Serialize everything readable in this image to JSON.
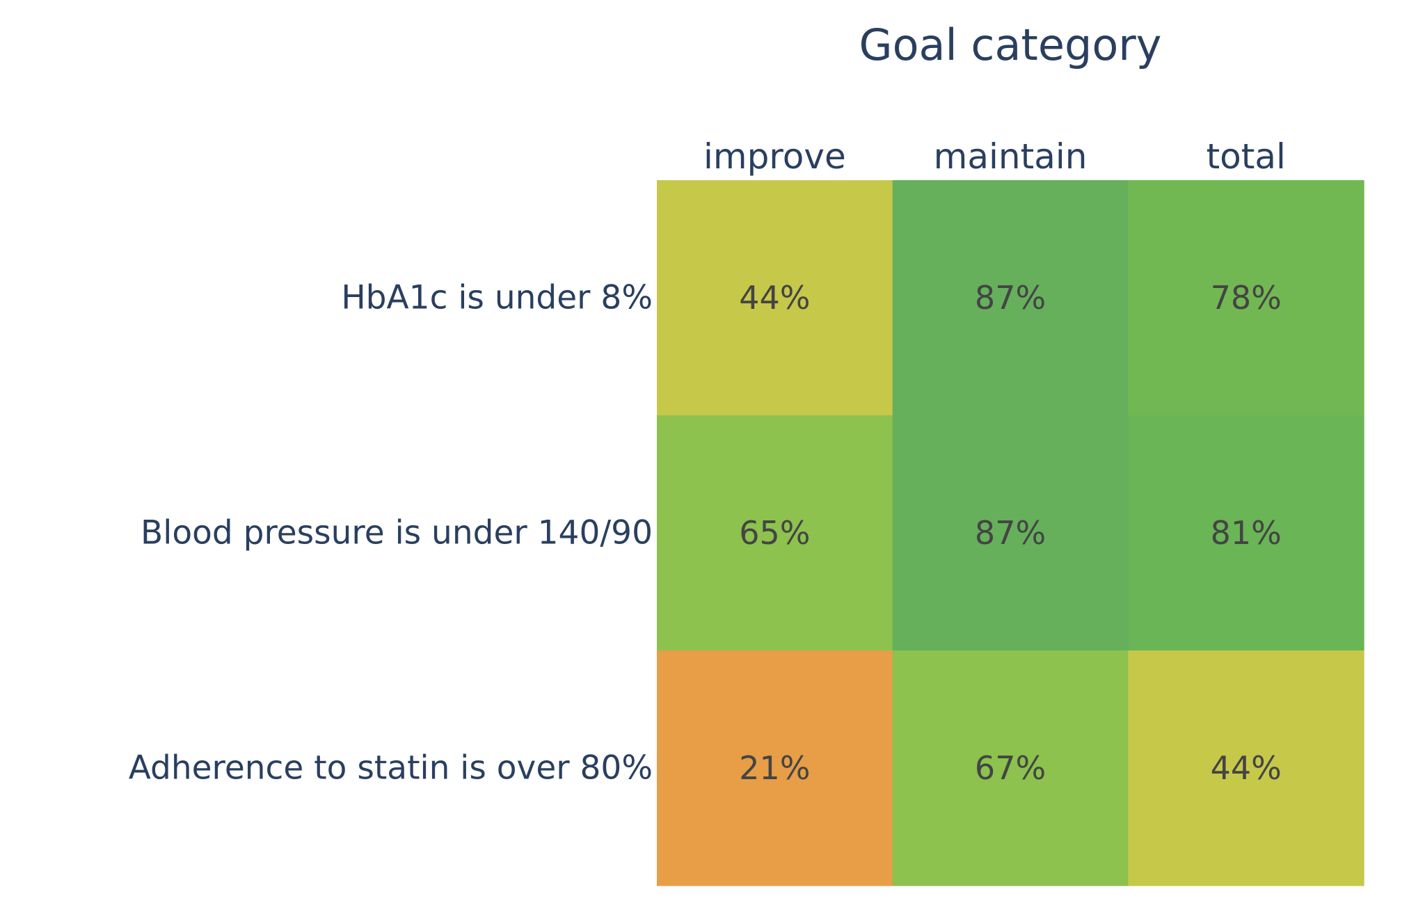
{
  "chart_data": {
    "type": "heatmap",
    "title": "Goal category",
    "columns": [
      "improve",
      "maintain",
      "total"
    ],
    "rows": [
      "HbA1c is under 8%",
      "Blood pressure is under 140/90",
      "Adherence to statin is over 80%"
    ],
    "values": [
      [
        44,
        87,
        78
      ],
      [
        65,
        87,
        81
      ],
      [
        21,
        67,
        44
      ]
    ],
    "cell_labels": [
      [
        "44%",
        "87%",
        "78%"
      ],
      [
        "65%",
        "87%",
        "81%"
      ],
      [
        "21%",
        "67%",
        "44%"
      ]
    ],
    "cell_colors": [
      [
        "#c6c84a",
        "#66b05c",
        "#72b852"
      ],
      [
        "#8dc24e",
        "#66b05c",
        "#6ab556"
      ],
      [
        "#e79e47",
        "#8cc24d",
        "#c6c84a"
      ]
    ],
    "colors": {
      "title_text": "#2a3f5f",
      "label_text": "#2a3f5f",
      "cell_text": "#444444"
    }
  }
}
